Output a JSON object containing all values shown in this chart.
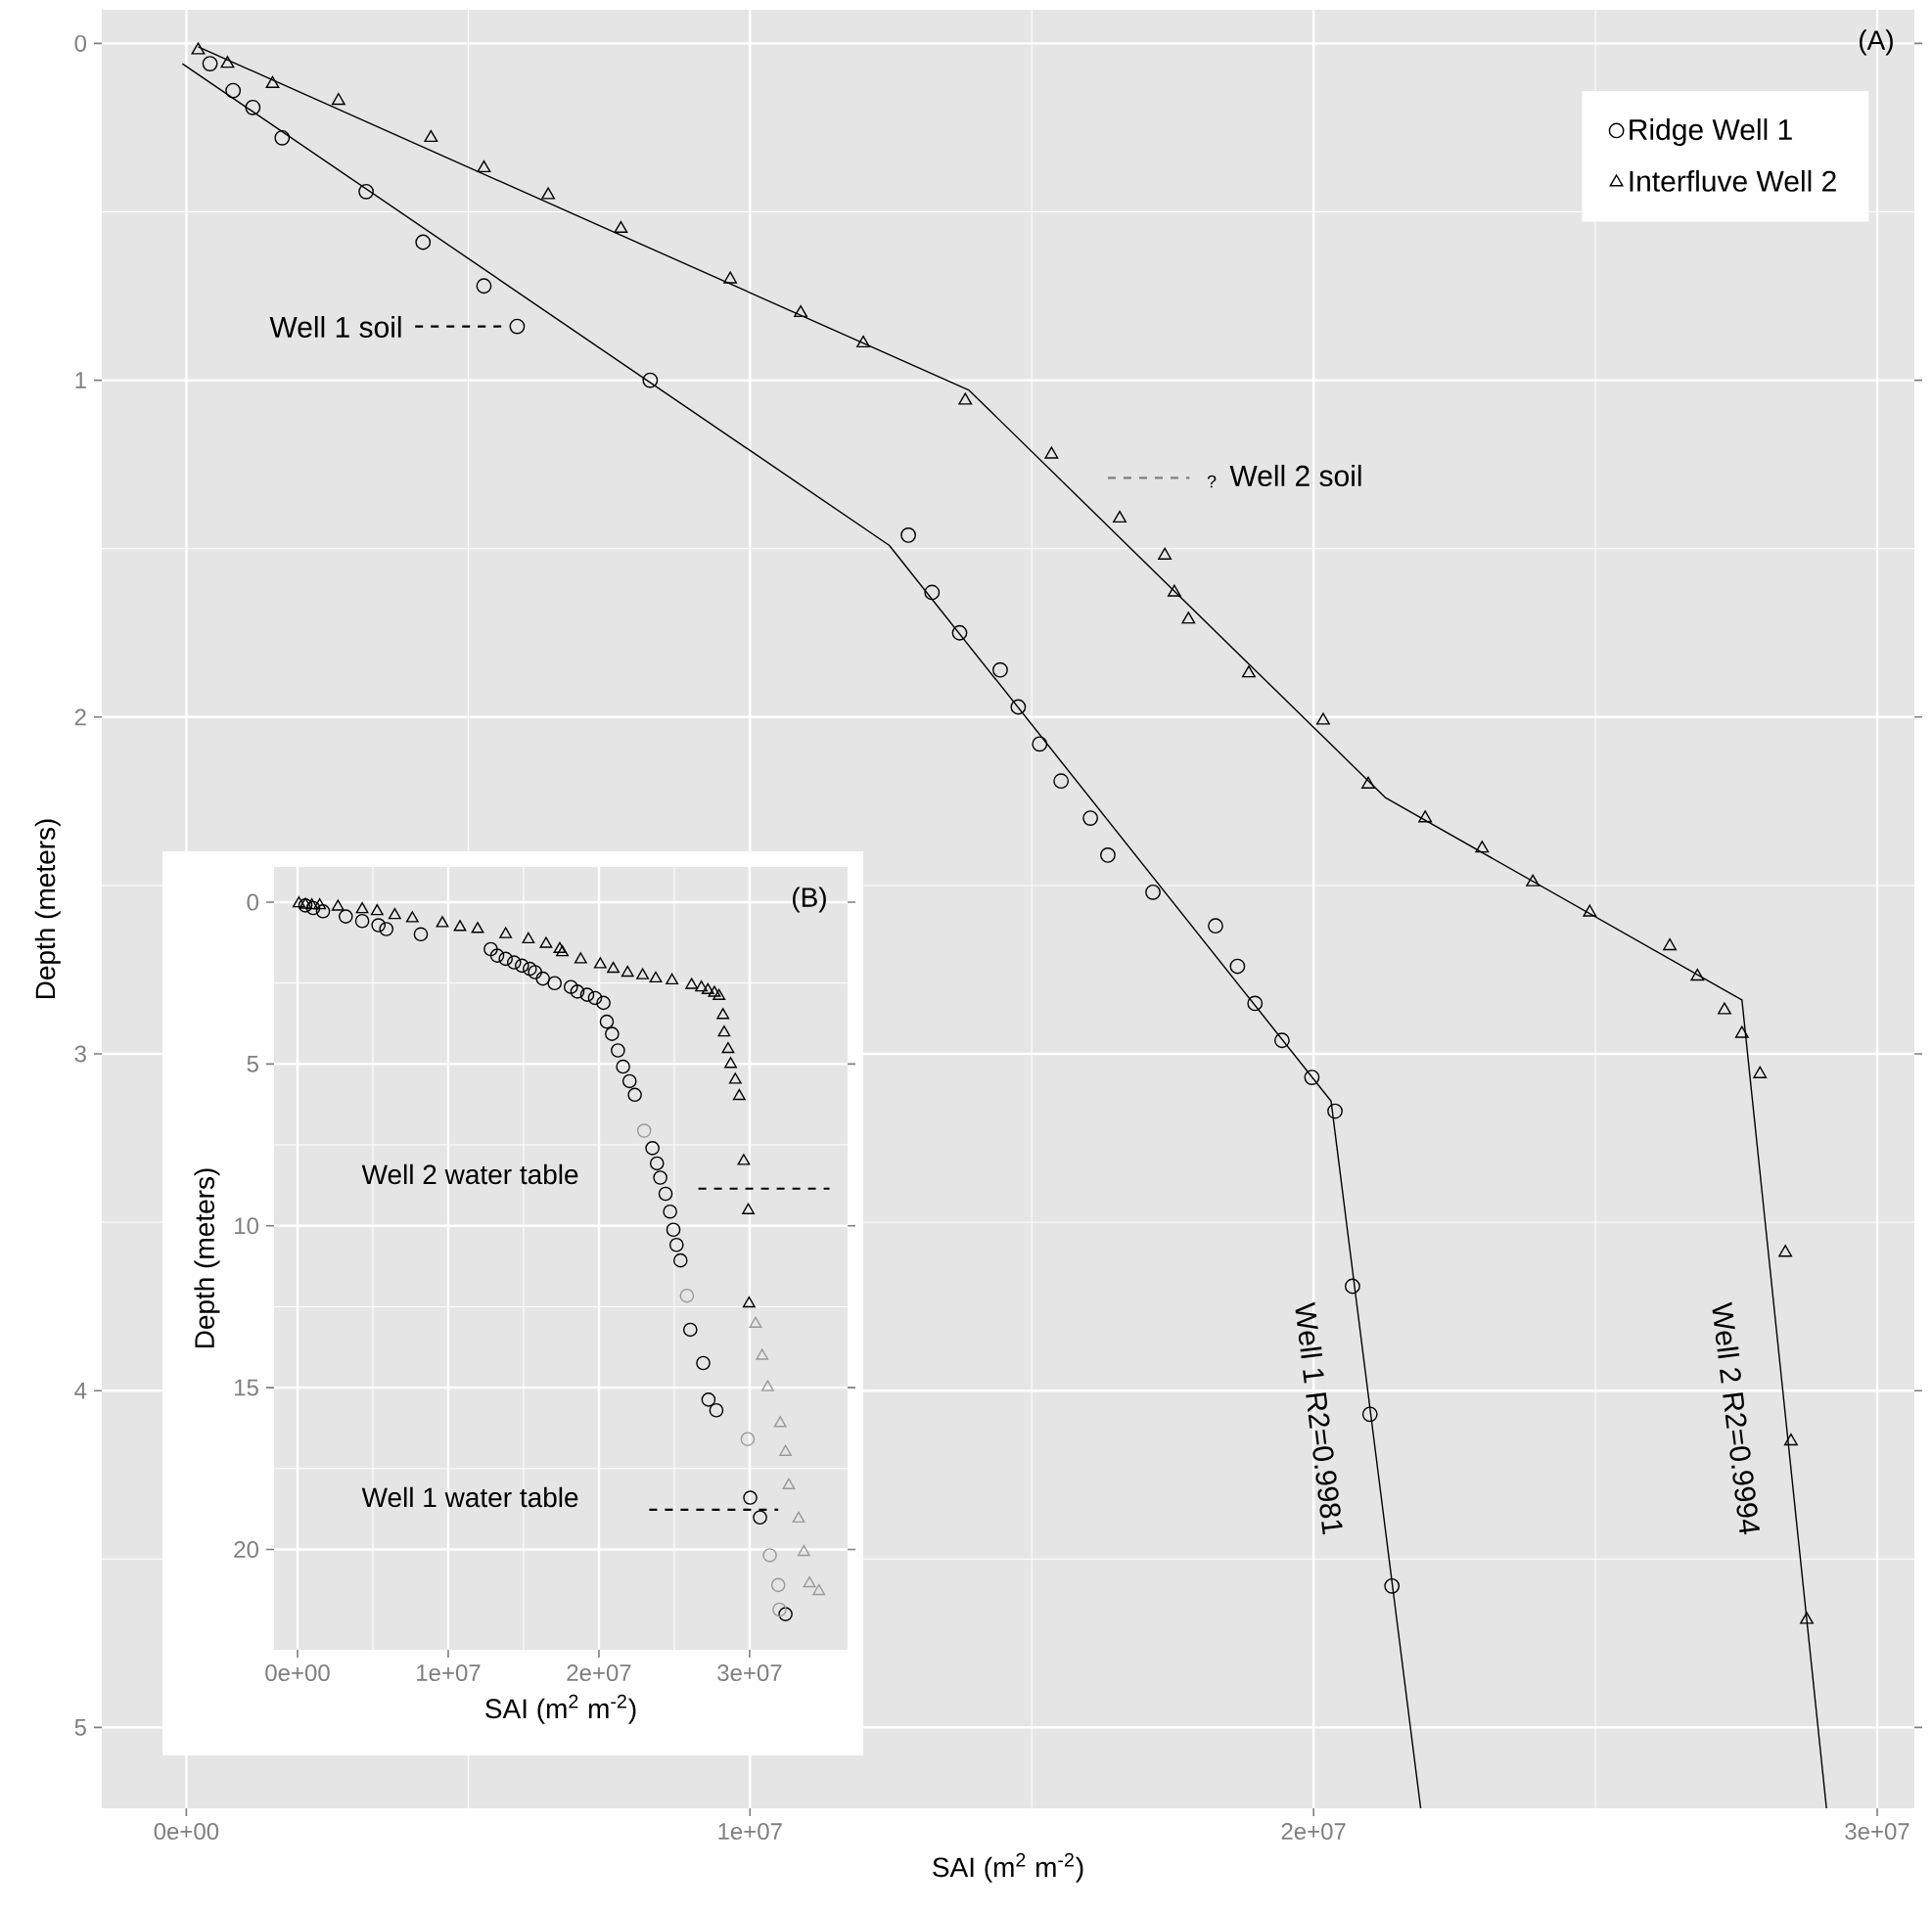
{
  "chart_data": [
    {
      "type": "scatter",
      "xlabel": "SAI (m$^{2}$ m$^{-2}$)",
      "ylabel": "Depth (meters)",
      "xlim": [
        -1500000,
        30660000
      ],
      "ylim": [
        5.24,
        -0.1
      ],
      "xticks": [
        {
          "value": 0,
          "label": "0e+00"
        },
        {
          "value": 10000000,
          "label": "1e+07"
        },
        {
          "value": 20000000,
          "label": "2e+07"
        },
        {
          "value": 30000000,
          "label": "3e+07"
        }
      ],
      "yticks": [
        0,
        1,
        2,
        3,
        4,
        5
      ],
      "grid": true,
      "legend": "top right",
      "series": [
        {
          "name": "Ridge Well 1",
          "type": "scatter",
          "marker": "circle",
          "color": "#000000",
          "x": [
            420000,
            830000,
            1180000,
            1700000,
            3190000,
            4200000,
            5280000,
            5870000,
            8230000,
            12810000,
            13230000,
            13720000,
            14440000,
            14760000,
            15140000,
            15520000,
            16040000,
            16350000,
            17150000,
            18260000,
            18650000,
            18960000,
            19440000,
            19970000,
            20380000,
            20690000,
            21000000,
            21390000
          ],
          "values": [
            0.06,
            0.14,
            0.19,
            0.28,
            0.44,
            0.59,
            0.72,
            0.84,
            1.0,
            1.46,
            1.63,
            1.75,
            1.86,
            1.97,
            2.08,
            2.19,
            2.3,
            2.41,
            2.52,
            2.62,
            2.74,
            2.85,
            2.96,
            3.07,
            3.17,
            3.69,
            4.07,
            4.58
          ]
        },
        {
          "name": "Interfluve Well 2",
          "type": "scatter",
          "marker": "triangle",
          "color": "#000000",
          "x": [
            210000,
            730000,
            1530000,
            2700000,
            4340000,
            5280000,
            6420000,
            7710000,
            9650000,
            10900000,
            12010000,
            13820000,
            15350000,
            16560000,
            17360000,
            17530000,
            17780000,
            18850000,
            20170000,
            20970000,
            21980000,
            22990000,
            23890000,
            24900000,
            26320000,
            26810000,
            27290000,
            27600000,
            27920000,
            28370000,
            28470000,
            28750000
          ],
          "values": [
            0.02,
            0.06,
            0.12,
            0.17,
            0.28,
            0.37,
            0.45,
            0.55,
            0.7,
            0.8,
            0.89,
            1.06,
            1.22,
            1.41,
            1.52,
            1.63,
            1.71,
            1.87,
            2.01,
            2.2,
            2.3,
            2.39,
            2.49,
            2.58,
            2.68,
            2.77,
            2.87,
            2.94,
            3.06,
            3.59,
            4.15,
            4.68
          ]
        },
        {
          "type": "line",
          "color": "#000000",
          "x": [
            -70000,
            12470000,
            20310000,
            21900000
          ],
          "values": [
            0.06,
            1.49,
            3.14,
            5.24
          ]
        },
        {
          "type": "line",
          "color": "#000000",
          "x": [
            210000,
            13890000,
            21280000,
            27600000,
            29100000
          ],
          "values": [
            0.01,
            1.03,
            2.24,
            2.84,
            5.24
          ]
        },
        {
          "type": "line",
          "line_style": "dashed",
          "color": "#000000",
          "x": [
            4060000,
            5590000
          ],
          "values": [
            0.84,
            0.84
          ]
        },
        {
          "type": "line",
          "line_style": "dashed",
          "color": "#7f7f7f",
          "x": [
            16350000,
            17800000
          ],
          "values": [
            1.29,
            1.29
          ]
        }
      ],
      "annotations": [
        "(A)",
        "Well 1 soil",
        "?",
        "Well 2 soil",
        "Well 1 R2=0.9981",
        "Well 2 R2=0.9994"
      ]
    },
    {
      "type": "scatter",
      "xlabel": "SAI (m$^{2}$ m$^{-2}$)",
      "ylabel": "Depth (meters)",
      "xlim": [
        -1560000,
        36500000
      ],
      "ylim": [
        23.1,
        -1.09
      ],
      "xticks": [
        {
          "value": 0,
          "label": "0e+00"
        },
        {
          "value": 10000000,
          "label": "1e+07"
        },
        {
          "value": 20000000,
          "label": "2e+07"
        },
        {
          "value": 30000000,
          "label": "3e+07"
        }
      ],
      "yticks": [
        0,
        5,
        10,
        15,
        20
      ],
      "grid": true,
      "series": [
        {
          "type": "scatter",
          "marker": "circle",
          "color": "#000000",
          "x": [
            520000,
            1040000,
            1690000,
            3200000,
            4290000,
            5370000,
            5890000,
            8180000,
            12820000,
            13250000,
            13810000,
            14370000,
            14890000,
            15410000,
            15760000,
            16280000,
            17060000,
            18140000,
            18570000,
            19220000,
            19740000,
            20300000,
            20520000,
            20870000,
            21260000,
            21600000,
            22030000,
            22380000,
            23550000,
            23850000,
            24070000,
            24420000,
            24720000,
            24940000,
            25150000,
            25410000,
            26060000,
            26920000,
            27270000,
            27790000,
            30040000,
            30690000,
            32380000
          ],
          "values": [
            0.1,
            0.18,
            0.28,
            0.44,
            0.58,
            0.71,
            0.83,
            0.99,
            1.45,
            1.65,
            1.75,
            1.86,
            1.96,
            2.06,
            2.16,
            2.36,
            2.5,
            2.62,
            2.76,
            2.86,
            2.96,
            3.11,
            3.69,
            4.07,
            4.58,
            5.08,
            5.53,
            5.95,
            7.6,
            8.07,
            8.51,
            9.01,
            9.56,
            10.12,
            10.59,
            11.07,
            13.21,
            14.24,
            15.37,
            15.7,
            18.4,
            19.01,
            22.0
          ]
        },
        {
          "type": "scatter",
          "marker": "circle",
          "color": "#999999",
          "x": [
            23000000,
            25840000,
            29870000,
            31340000,
            31900000,
            31980000
          ],
          "values": [
            7.06,
            12.16,
            16.59,
            20.18,
            21.1,
            21.86
          ]
        },
        {
          "type": "scatter",
          "marker": "triangle",
          "color": "#000000",
          "x": [
            90000,
            520000,
            950000,
            1470000,
            2680000,
            4290000,
            5280000,
            6450000,
            7620000,
            9610000,
            10780000,
            11950000,
            13810000,
            15320000,
            16490000,
            17400000,
            17570000,
            18790000,
            20090000,
            20950000,
            21900000,
            22900000,
            23770000,
            24850000,
            26150000,
            26800000,
            27230000,
            27660000,
            27970000,
            28230000,
            28310000,
            28570000,
            28740000,
            29050000,
            29310000,
            29610000,
            29910000,
            29960000
          ],
          "values": [
            0.04,
            0.08,
            0.1,
            0.1,
            0.14,
            0.22,
            0.28,
            0.4,
            0.5,
            0.65,
            0.77,
            0.83,
            0.99,
            1.15,
            1.29,
            1.45,
            1.55,
            1.77,
            1.92,
            2.06,
            2.18,
            2.26,
            2.36,
            2.42,
            2.56,
            2.64,
            2.72,
            2.8,
            2.9,
            3.49,
            4.03,
            4.54,
            5.0,
            5.49,
            5.99,
            8.0,
            9.52,
            12.4
          ]
        },
        {
          "type": "scatter",
          "marker": "triangle",
          "color": "#999999",
          "x": [
            30390000,
            30830000,
            31200000,
            32030000,
            32380000,
            32600000,
            33250000,
            33600000,
            33970000,
            34600000
          ],
          "values": [
            13.03,
            14.02,
            14.99,
            16.1,
            16.99,
            18.02,
            19.05,
            20.08,
            21.05,
            21.29
          ]
        },
        {
          "type": "line",
          "line_style": "dashed",
          "color": "#000000",
          "x": [
            26600000,
            35300000
          ],
          "values": [
            8.85,
            8.85
          ]
        },
        {
          "type": "line",
          "line_style": "dashed",
          "color": "#000000",
          "x": [
            23340000,
            31900000
          ],
          "values": [
            18.77,
            18.77
          ]
        }
      ],
      "annotations": [
        "(B)",
        "Well 2 water table",
        "Well 1 water table"
      ]
    }
  ]
}
